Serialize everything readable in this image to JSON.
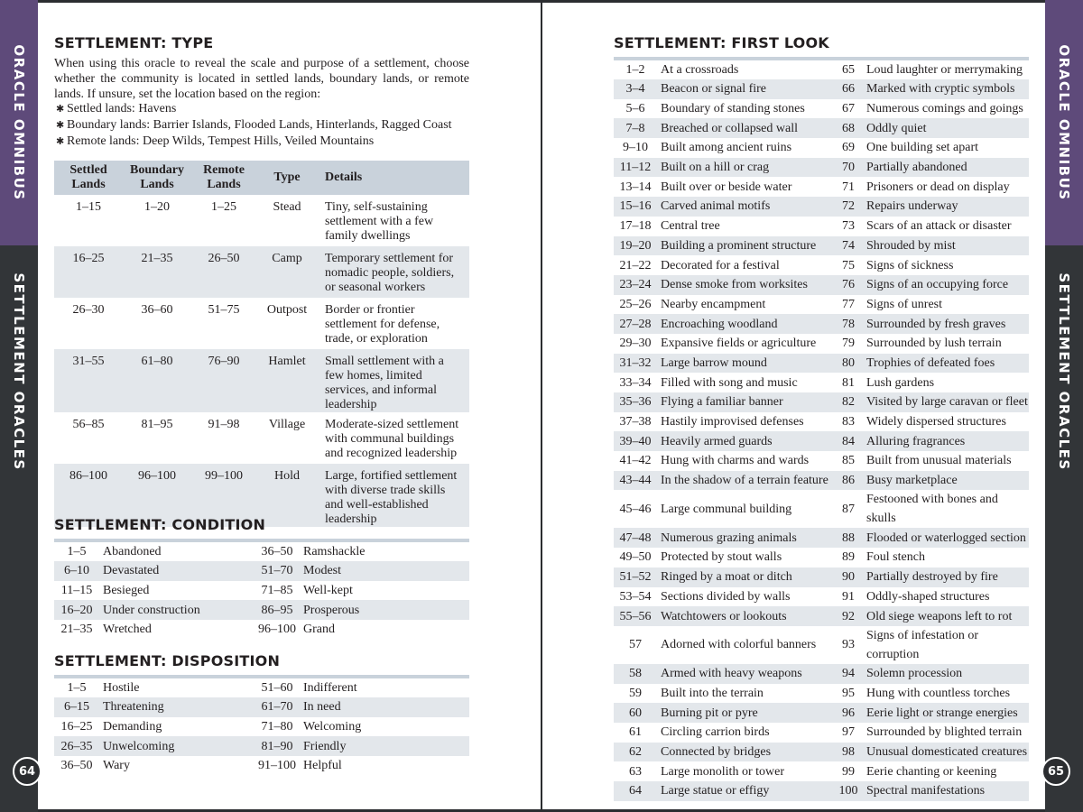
{
  "tabs": {
    "top": "ORACLE OMNIBUS",
    "bottom": "SETTLEMENT ORACLES"
  },
  "page_numbers": {
    "left": "64",
    "right": "65"
  },
  "colors": {
    "tab_purple": "#5e4a7a",
    "tab_dark": "#323538",
    "header_fill": "#c9d2db",
    "stripe": "#e3e7eb"
  },
  "type": {
    "title": "SETTLEMENT: TYPE",
    "intro": "When using this oracle to reveal the scale and purpose of a settlement, choose whether the community is located in settled lands, boundary lands, or remote lands. If unsure, set the location based on the region:",
    "bullets": [
      "Settled lands: Havens",
      "Boundary lands: Barrier Islands, Flooded Lands, Hinterlands, Ragged Coast",
      "Remote lands: Deep Wilds, Tempest Hills, Veiled Mountains"
    ],
    "headers": [
      "Settled Lands",
      "Boundary Lands",
      "Remote Lands",
      "Type",
      "Details"
    ],
    "rows": [
      [
        "1–15",
        "1–20",
        "1–25",
        "Stead",
        "Tiny, self-sustaining settlement with a few family dwellings"
      ],
      [
        "16–25",
        "21–35",
        "26–50",
        "Camp",
        "Temporary settlement for nomadic people, soldiers, or seasonal workers"
      ],
      [
        "26–30",
        "36–60",
        "51–75",
        "Outpost",
        "Border or frontier settlement for defense, trade, or exploration"
      ],
      [
        "31–55",
        "61–80",
        "76–90",
        "Hamlet",
        "Small settlement with a few homes, limited services, and informal leadership"
      ],
      [
        "56–85",
        "81–95",
        "91–98",
        "Village",
        "Moderate-sized settlement with communal buildings and recognized leadership"
      ],
      [
        "86–100",
        "96–100",
        "99–100",
        "Hold",
        "Large, fortified settlement with diverse trade skills and well-established leadership"
      ]
    ]
  },
  "condition": {
    "title": "SETTLEMENT: CONDITION",
    "rows": [
      [
        "1–5",
        "Abandoned",
        "36–50",
        "Ramshackle"
      ],
      [
        "6–10",
        "Devastated",
        "51–70",
        "Modest"
      ],
      [
        "11–15",
        "Besieged",
        "71–85",
        "Well-kept"
      ],
      [
        "16–20",
        "Under construction",
        "86–95",
        "Prosperous"
      ],
      [
        "21–35",
        "Wretched",
        "96–100",
        "Grand"
      ]
    ]
  },
  "disposition": {
    "title": "SETTLEMENT: DISPOSITION",
    "rows": [
      [
        "1–5",
        "Hostile",
        "51–60",
        "Indifferent"
      ],
      [
        "6–15",
        "Threatening",
        "61–70",
        "In need"
      ],
      [
        "16–25",
        "Demanding",
        "71–80",
        "Welcoming"
      ],
      [
        "26–35",
        "Unwelcoming",
        "81–90",
        "Friendly"
      ],
      [
        "36–50",
        "Wary",
        "91–100",
        "Helpful"
      ]
    ]
  },
  "first_look": {
    "title": "SETTLEMENT: FIRST LOOK",
    "rows": [
      [
        "1–2",
        "At a crossroads",
        "65",
        "Loud laughter or merrymaking"
      ],
      [
        "3–4",
        "Beacon or signal fire",
        "66",
        "Marked with cryptic symbols"
      ],
      [
        "5–6",
        "Boundary of standing stones",
        "67",
        "Numerous comings and goings"
      ],
      [
        "7–8",
        "Breached or collapsed wall",
        "68",
        "Oddly quiet"
      ],
      [
        "9–10",
        "Built among ancient ruins",
        "69",
        "One building set apart"
      ],
      [
        "11–12",
        "Built on a hill or crag",
        "70",
        "Partially abandoned"
      ],
      [
        "13–14",
        "Built over or beside water",
        "71",
        "Prisoners or dead on display"
      ],
      [
        "15–16",
        "Carved animal motifs",
        "72",
        "Repairs underway"
      ],
      [
        "17–18",
        "Central tree",
        "73",
        "Scars of an attack or disaster"
      ],
      [
        "19–20",
        "Building a prominent structure",
        "74",
        "Shrouded by mist"
      ],
      [
        "21–22",
        "Decorated for a festival",
        "75",
        "Signs of sickness"
      ],
      [
        "23–24",
        "Dense smoke from worksites",
        "76",
        "Signs of an occupying force"
      ],
      [
        "25–26",
        "Nearby encampment",
        "77",
        "Signs of unrest"
      ],
      [
        "27–28",
        "Encroaching woodland",
        "78",
        "Surrounded by fresh graves"
      ],
      [
        "29–30",
        "Expansive fields or agriculture",
        "79",
        "Surrounded by lush terrain"
      ],
      [
        "31–32",
        "Large barrow mound",
        "80",
        "Trophies of defeated foes"
      ],
      [
        "33–34",
        "Filled with song and music",
        "81",
        "Lush gardens"
      ],
      [
        "35–36",
        "Flying a familiar banner",
        "82",
        "Visited by large caravan or fleet"
      ],
      [
        "37–38",
        "Hastily improvised defenses",
        "83",
        "Widely dispersed structures"
      ],
      [
        "39–40",
        "Heavily armed guards",
        "84",
        "Alluring fragrances"
      ],
      [
        "41–42",
        "Hung with charms and wards",
        "85",
        "Built from unusual materials"
      ],
      [
        "43–44",
        "In the shadow of a terrain feature",
        "86",
        "Busy marketplace"
      ],
      [
        "45–46",
        "Large communal building",
        "87",
        "Festooned with bones and skulls"
      ],
      [
        "47–48",
        "Numerous grazing animals",
        "88",
        "Flooded or waterlogged section"
      ],
      [
        "49–50",
        "Protected by stout walls",
        "89",
        "Foul stench"
      ],
      [
        "51–52",
        "Ringed by a moat or ditch",
        "90",
        "Partially destroyed by fire"
      ],
      [
        "53–54",
        "Sections divided by walls",
        "91",
        "Oddly-shaped structures"
      ],
      [
        "55–56",
        "Watchtowers or lookouts",
        "92",
        "Old siege weapons left to rot"
      ],
      [
        "57",
        "Adorned with colorful banners",
        "93",
        "Signs of infestation or corruption"
      ],
      [
        "58",
        "Armed with heavy weapons",
        "94",
        "Solemn procession"
      ],
      [
        "59",
        "Built into the terrain",
        "95",
        "Hung with countless torches"
      ],
      [
        "60",
        "Burning pit or pyre",
        "96",
        "Eerie light or strange energies"
      ],
      [
        "61",
        "Circling carrion birds",
        "97",
        "Surrounded by blighted terrain"
      ],
      [
        "62",
        "Connected by bridges",
        "98",
        "Unusual domesticated creatures"
      ],
      [
        "63",
        "Large monolith or tower",
        "99",
        "Eerie chanting or keening"
      ],
      [
        "64",
        "Large statue or effigy",
        "100",
        "Spectral manifestations"
      ]
    ]
  }
}
